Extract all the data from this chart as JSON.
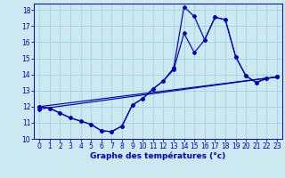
{
  "xlabel": "Graphe des températures (°c)",
  "xlim": [
    -0.5,
    23.5
  ],
  "ylim": [
    10,
    18.4
  ],
  "xticks": [
    0,
    1,
    2,
    3,
    4,
    5,
    6,
    7,
    8,
    9,
    10,
    11,
    12,
    13,
    14,
    15,
    16,
    17,
    18,
    19,
    20,
    21,
    22,
    23
  ],
  "yticks": [
    10,
    11,
    12,
    13,
    14,
    15,
    16,
    17,
    18
  ],
  "bg_color": "#cce8f0",
  "line_color": "#0000bb",
  "grid_color": "#99cce0",
  "line1_x": [
    0,
    1,
    2,
    3,
    4,
    5,
    6,
    7,
    8,
    9,
    10,
    11,
    12,
    13,
    14,
    15,
    16,
    17,
    18,
    19,
    20,
    21,
    22,
    23
  ],
  "line1_y": [
    12.0,
    11.9,
    11.6,
    11.3,
    11.1,
    10.9,
    10.5,
    10.45,
    10.8,
    12.1,
    12.5,
    13.1,
    13.6,
    14.4,
    18.2,
    17.6,
    16.15,
    17.55,
    17.4,
    15.1,
    13.9,
    13.5,
    13.75,
    13.85
  ],
  "line2_x": [
    0,
    1,
    2,
    3,
    4,
    5,
    6,
    7,
    8,
    9,
    10,
    11,
    12,
    13,
    14,
    15,
    16,
    17,
    18,
    19,
    20,
    21,
    22,
    23
  ],
  "line2_y": [
    12.0,
    11.9,
    11.6,
    11.3,
    11.1,
    10.9,
    10.5,
    10.45,
    10.8,
    12.1,
    12.5,
    13.1,
    13.6,
    14.3,
    16.55,
    15.35,
    16.15,
    17.55,
    17.4,
    15.1,
    13.9,
    13.5,
    13.75,
    13.85
  ],
  "line3_x": [
    0,
    23
  ],
  "line3_y": [
    12.0,
    13.85
  ],
  "line4_x": [
    0,
    23
  ],
  "line4_y": [
    11.85,
    13.85
  ]
}
